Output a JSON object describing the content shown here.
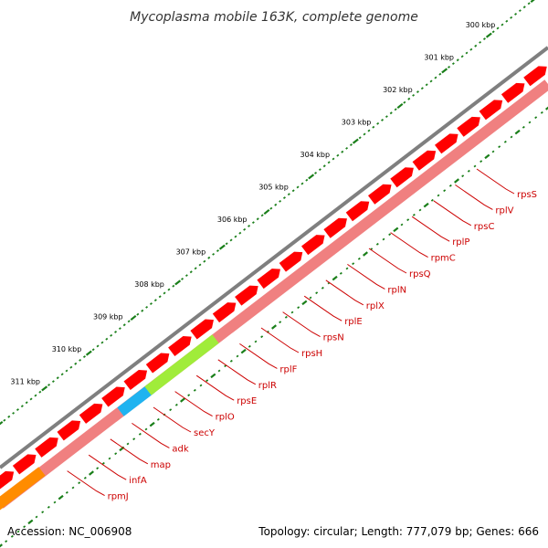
{
  "title": "Mycoplasma mobile 163K, complete genome",
  "footer": {
    "accession": "Accession: NC_006908",
    "summary": "Topology: circular; Length: 777,079 bp; Genes: 666"
  },
  "colors": {
    "backbone": "#7f7f7f",
    "cds": "#ff0000",
    "gene_track": "#f08080",
    "ticks": "#1a7f1a",
    "label": "#cc0000",
    "adk": "#1fb3f0",
    "secY": "#a0ec3a",
    "rpmJ": "#ff8c00"
  },
  "kbp_labels": [
    "300 kbp",
    "301 kbp",
    "302 kbp",
    "303 kbp",
    "304 kbp",
    "305 kbp",
    "306 kbp",
    "307 kbp",
    "308 kbp",
    "309 kbp",
    "310 kbp",
    "311 kbp"
  ],
  "gene_labels": [
    "rpsS",
    "rplV",
    "rpsC",
    "rplP",
    "rpmC",
    "rpsQ",
    "rplN",
    "rplX",
    "rplE",
    "rpsN",
    "rpsH",
    "rplF",
    "rplR",
    "rpsE",
    "rplO",
    "secY",
    "adk",
    "map",
    "infA",
    "rpmJ"
  ],
  "highlighted_genes": [
    "adk",
    "secY",
    "rpmJ"
  ]
}
